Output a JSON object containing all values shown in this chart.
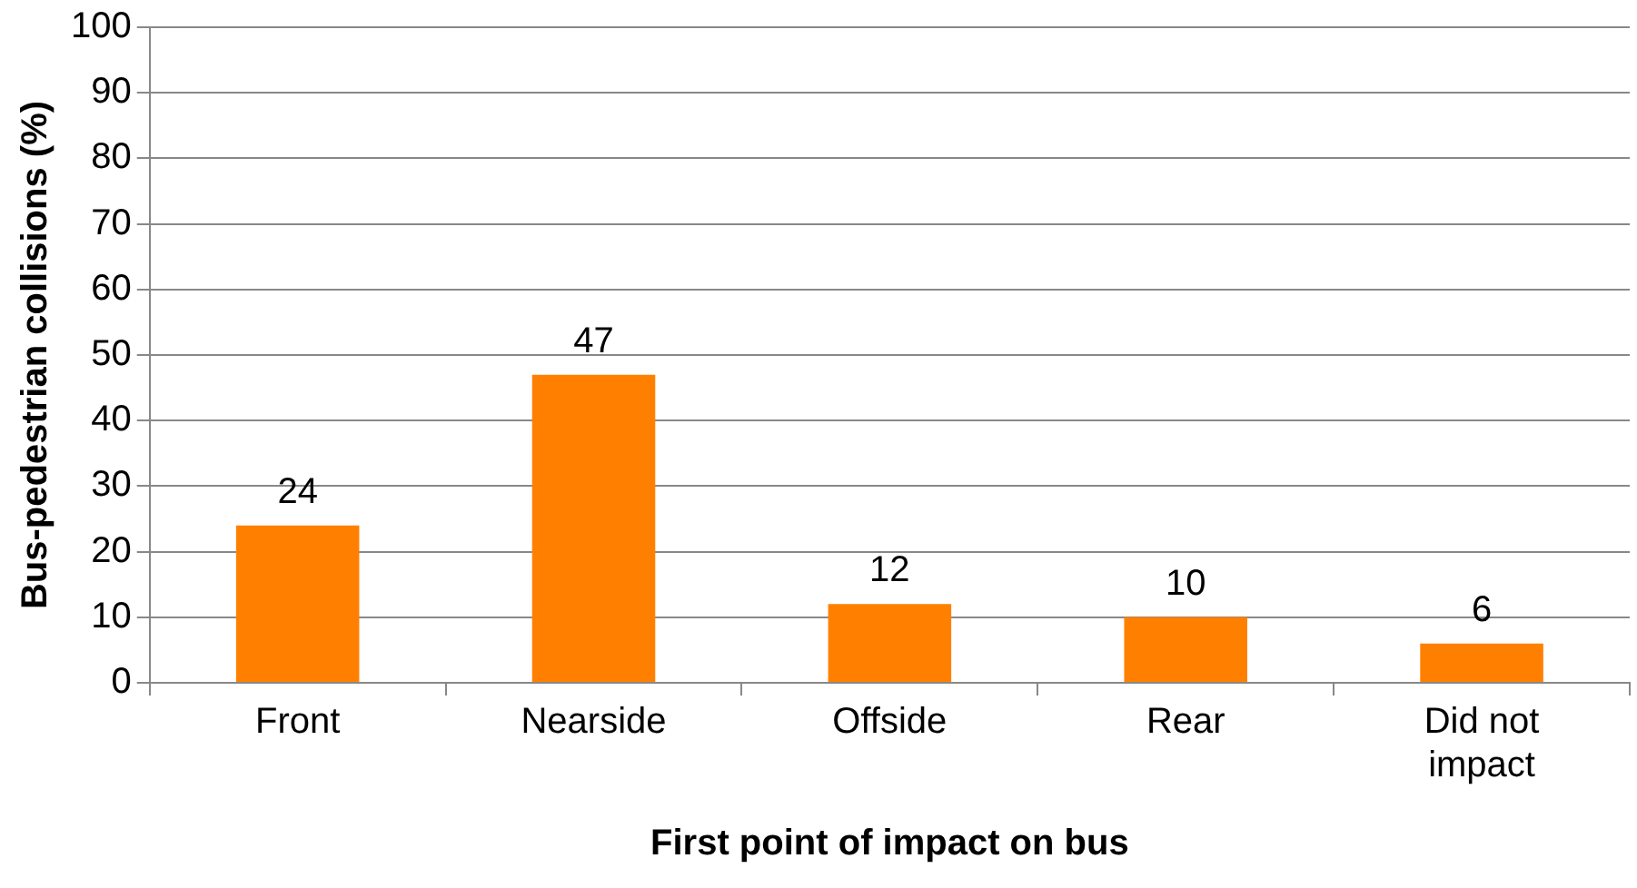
{
  "chart_data": {
    "type": "bar",
    "xlabel": "First point of impact on bus",
    "ylabel": "Bus-pedestrian collisions (%)",
    "categories": [
      "Front",
      "Nearside",
      "Offside",
      "Rear",
      "Did not impact"
    ],
    "values": [
      24,
      47,
      12,
      10,
      6
    ],
    "color": "#ff8000",
    "ylim": [
      0,
      100
    ],
    "yticks": [
      0,
      10,
      20,
      30,
      40,
      50,
      60,
      70,
      80,
      90,
      100
    ],
    "grid": "y",
    "data_labels": true
  }
}
